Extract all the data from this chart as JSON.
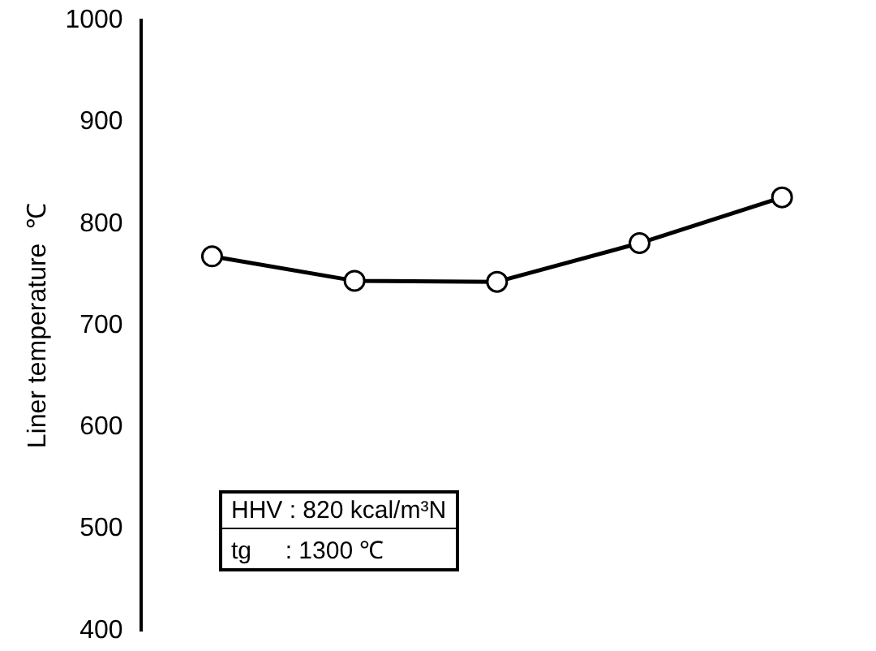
{
  "chart_data": {
    "type": "line",
    "ylabel": "Liner temperature  ℃",
    "categories": [
      null,
      null,
      null,
      null,
      null
    ],
    "series": [
      {
        "color": "#000000",
        "values": [
          768,
          744,
          743,
          781,
          826
        ]
      }
    ],
    "ylim": [
      400,
      1000
    ],
    "yticks": [
      400,
      500,
      600,
      700,
      800,
      900,
      1000
    ],
    "grid": false,
    "legend": false,
    "marker": "circle",
    "line_style": "solid",
    "tick_labels": "y",
    "annotations": [
      "HHV : 820 kcal/m³N",
      "tg     : 1300 ℃"
    ]
  }
}
